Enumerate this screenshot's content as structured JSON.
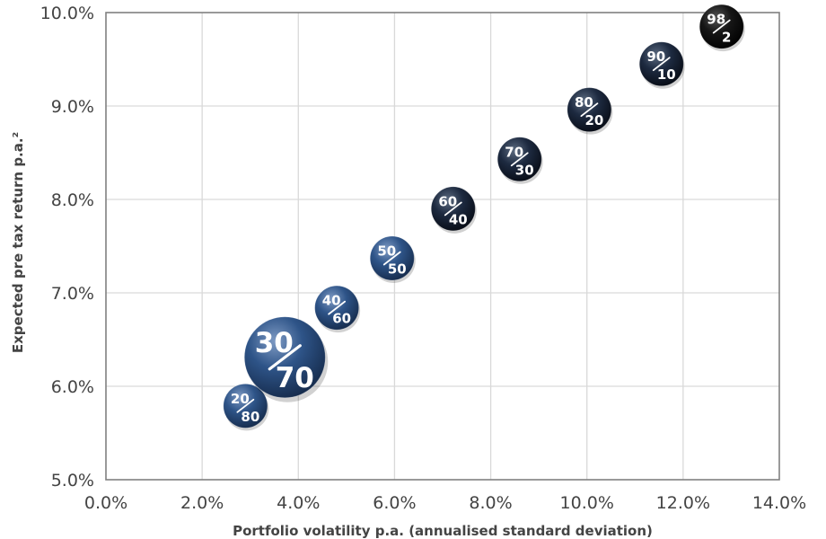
{
  "chart_data": {
    "type": "scatter",
    "title": "",
    "xlabel": "Portfolio volatility p.a. (annualised standard deviation)",
    "ylabel": "Expected pre tax return p.a.²",
    "xlim": [
      0.0,
      14.0
    ],
    "ylim": [
      5.0,
      10.0
    ],
    "x_ticks": [
      {
        "value": 0,
        "label": "0.0%"
      },
      {
        "value": 2,
        "label": "2.0%"
      },
      {
        "value": 4,
        "label": "4.0%"
      },
      {
        "value": 6,
        "label": "6.0%"
      },
      {
        "value": 8,
        "label": "8.0%"
      },
      {
        "value": 10,
        "label": "10.0%"
      },
      {
        "value": 12,
        "label": "12.0%"
      },
      {
        "value": 14,
        "label": "14.0%"
      }
    ],
    "y_ticks": [
      {
        "value": 5,
        "label": "5.0%"
      },
      {
        "value": 6,
        "label": "6.0%"
      },
      {
        "value": 7,
        "label": "7.0%"
      },
      {
        "value": 8,
        "label": "8.0%"
      },
      {
        "value": 9,
        "label": "9.0%"
      },
      {
        "value": 10,
        "label": "10.0%"
      }
    ],
    "grid": true,
    "points": [
      {
        "top": "20",
        "bottom": "80",
        "x": 2.9,
        "y": 5.79,
        "style": "blue",
        "highlight": false
      },
      {
        "top": "30",
        "bottom": "70",
        "x": 3.72,
        "y": 6.31,
        "style": "blue",
        "highlight": true
      },
      {
        "top": "40",
        "bottom": "60",
        "x": 4.8,
        "y": 6.84,
        "style": "blue",
        "highlight": false
      },
      {
        "top": "50",
        "bottom": "50",
        "x": 5.95,
        "y": 7.37,
        "style": "blue",
        "highlight": false
      },
      {
        "top": "60",
        "bottom": "40",
        "x": 7.22,
        "y": 7.9,
        "style": "dark",
        "highlight": false
      },
      {
        "top": "70",
        "bottom": "30",
        "x": 8.6,
        "y": 8.43,
        "style": "dark",
        "highlight": false
      },
      {
        "top": "80",
        "bottom": "20",
        "x": 10.05,
        "y": 8.96,
        "style": "dark",
        "highlight": false
      },
      {
        "top": "90",
        "bottom": "10",
        "x": 11.55,
        "y": 9.45,
        "style": "dark",
        "highlight": false
      },
      {
        "top": "98",
        "bottom": "2",
        "x": 12.8,
        "y": 9.85,
        "style": "black",
        "highlight": false
      }
    ],
    "colors": {
      "blue": "#2a4a78",
      "dark": "#1c2638",
      "black": "#0c0c0c",
      "grid": "#d9d9d9",
      "axis": "#808080"
    }
  }
}
